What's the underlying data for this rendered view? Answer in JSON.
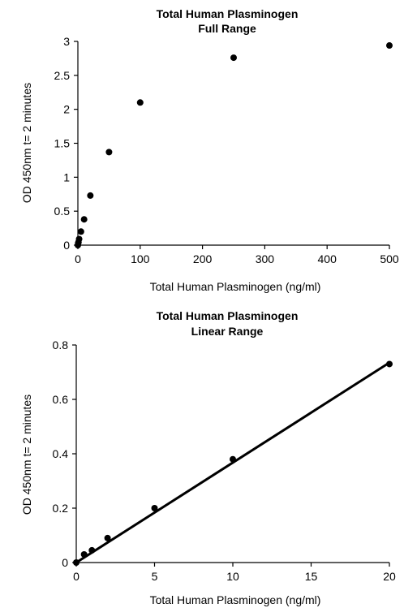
{
  "chart_data": [
    {
      "type": "scatter",
      "title": [
        "Total Human Plasminogen",
        "Full Range"
      ],
      "xlabel": "Total Human Plasminogen (ng/ml)",
      "ylabel": "OD 450nm t= 2 minutes",
      "xlim": [
        0,
        500
      ],
      "ylim": [
        0,
        3
      ],
      "xticks": [
        "0",
        "100",
        "200",
        "300",
        "400",
        "500"
      ],
      "yticks": [
        "0",
        "0.5",
        "1",
        "1.5",
        "2",
        "2.5",
        "3"
      ],
      "grid": false,
      "colors": {
        "marker": "#000000",
        "axis": "#000000"
      },
      "series": [
        {
          "points": [
            {
              "x": 0,
              "y": 0.0
            },
            {
              "x": 0.5,
              "y": 0.03
            },
            {
              "x": 1,
              "y": 0.045
            },
            {
              "x": 2,
              "y": 0.09
            },
            {
              "x": 5,
              "y": 0.2
            },
            {
              "x": 10,
              "y": 0.38
            },
            {
              "x": 20,
              "y": 0.73
            },
            {
              "x": 50,
              "y": 1.37
            },
            {
              "x": 100,
              "y": 2.1
            },
            {
              "x": 250,
              "y": 2.76
            },
            {
              "x": 500,
              "y": 2.94
            }
          ]
        }
      ]
    },
    {
      "type": "scatter",
      "title": [
        "Total Human Plasminogen",
        "Linear Range"
      ],
      "xlabel": "Total Human Plasminogen (ng/ml)",
      "ylabel": "OD 450nm t= 2 minutes",
      "xlim": [
        0,
        20
      ],
      "ylim": [
        0,
        0.8
      ],
      "xticks": [
        "0",
        "5",
        "10",
        "15",
        "20"
      ],
      "yticks": [
        "0",
        "0.2",
        "0.4",
        "0.6",
        "0.8"
      ],
      "grid": false,
      "colors": {
        "marker": "#000000",
        "axis": "#000000",
        "trendline": "#000000"
      },
      "trendline": {
        "type": "linear",
        "from": {
          "x": 0,
          "y": 0.0
        },
        "to": {
          "x": 20,
          "y": 0.735
        }
      },
      "series": [
        {
          "points": [
            {
              "x": 0,
              "y": 0.0
            },
            {
              "x": 0.5,
              "y": 0.03
            },
            {
              "x": 1,
              "y": 0.045
            },
            {
              "x": 2,
              "y": 0.09
            },
            {
              "x": 5,
              "y": 0.2
            },
            {
              "x": 10,
              "y": 0.38
            },
            {
              "x": 20,
              "y": 0.73
            }
          ]
        }
      ]
    }
  ]
}
